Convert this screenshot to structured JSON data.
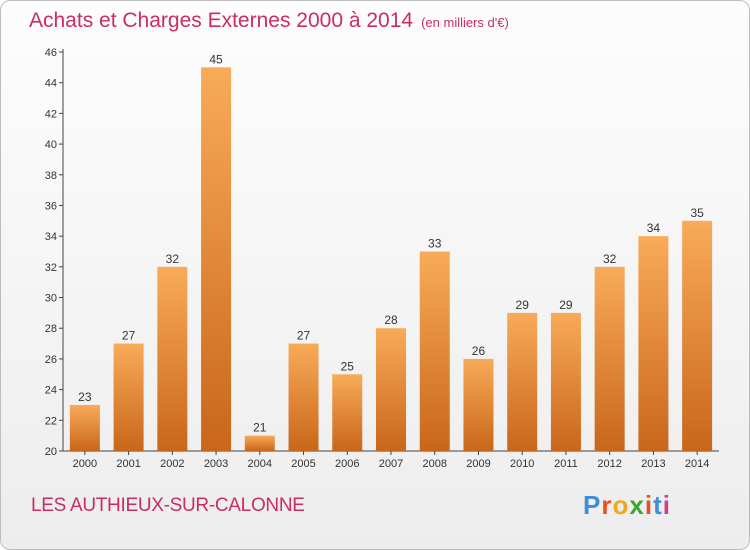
{
  "title": "Achats et Charges Externes 2000 à 2014",
  "subtitle": "(en milliers d'€)",
  "commune": "LES AUTHIEUX-SUR-CALONNE",
  "logo": {
    "letters": [
      "P",
      "r",
      "o",
      "x",
      "i",
      "t",
      "i"
    ],
    "colors": [
      "#3a8fd6",
      "#e8501c",
      "#f0a81c",
      "#3aa63a",
      "#e8501c",
      "#3a8fd6",
      "#d43b8b"
    ]
  },
  "colors": {
    "bar_light": "#f8ab58",
    "bar_dark": "#c9661a",
    "title": "#cc2b66"
  },
  "chart_data": {
    "type": "bar",
    "categories": [
      "2000",
      "2001",
      "2002",
      "2003",
      "2004",
      "2005",
      "2006",
      "2007",
      "2008",
      "2009",
      "2010",
      "2011",
      "2012",
      "2013",
      "2014"
    ],
    "values": [
      23,
      27,
      32,
      45,
      21,
      27,
      25,
      28,
      33,
      26,
      29,
      29,
      32,
      34,
      35
    ],
    "yticks": [
      20,
      22,
      24,
      26,
      28,
      30,
      32,
      34,
      36,
      38,
      40,
      42,
      44,
      46
    ],
    "ylim": [
      20,
      46
    ],
    "grid": false,
    "legend": "none"
  }
}
